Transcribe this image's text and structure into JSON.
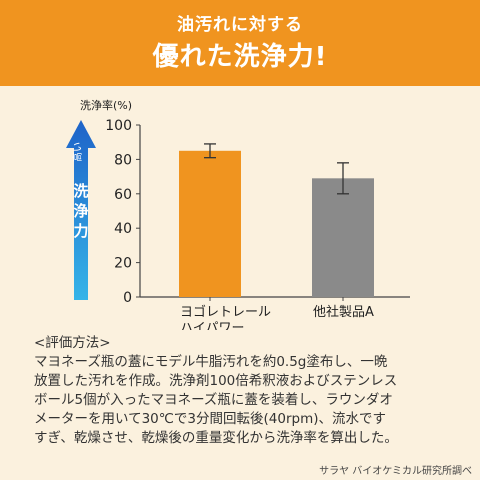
{
  "banner": {
    "subtitle": "油汚れに対する",
    "title": "優れた洗浄力!"
  },
  "indicator": {
    "high": "高い",
    "label": "洗浄力"
  },
  "colors": {
    "banner": "#f0941f",
    "background": "#fbf1de",
    "bar_product": "#f0941f",
    "bar_other": "#8a8a8a",
    "arrow_top": "#1e63c8",
    "arrow_bottom": "#35b4e8"
  },
  "chart_data": {
    "type": "bar",
    "ylabel": "洗浄率(%)",
    "ylim": [
      0,
      100
    ],
    "yticks": [
      0,
      20,
      40,
      60,
      80,
      100
    ],
    "categories": [
      [
        "ヨゴレトレール",
        "ハイパワー"
      ],
      [
        "他社製品A"
      ]
    ],
    "values": [
      85,
      69
    ],
    "error": [
      [
        81,
        89
      ],
      [
        60,
        78
      ]
    ]
  },
  "method": {
    "heading": "<評価方法>",
    "lines": [
      "マヨネーズ瓶の蓋にモデル牛脂汚れを約0.5g塗布し、一晩",
      "放置した汚れを作成。洗浄剤100倍希釈液およびステンレス",
      "ボール5個が入ったマヨネーズ瓶に蓋を装着し、ラウンダオ",
      "メーターを用いて30℃で3分間回転後(40rpm)、流水です",
      "すぎ、乾燥させ、乾燥後の重量変化から洗浄率を算出した。"
    ]
  },
  "credit": "サラヤ バイオケミカル研究所調べ"
}
